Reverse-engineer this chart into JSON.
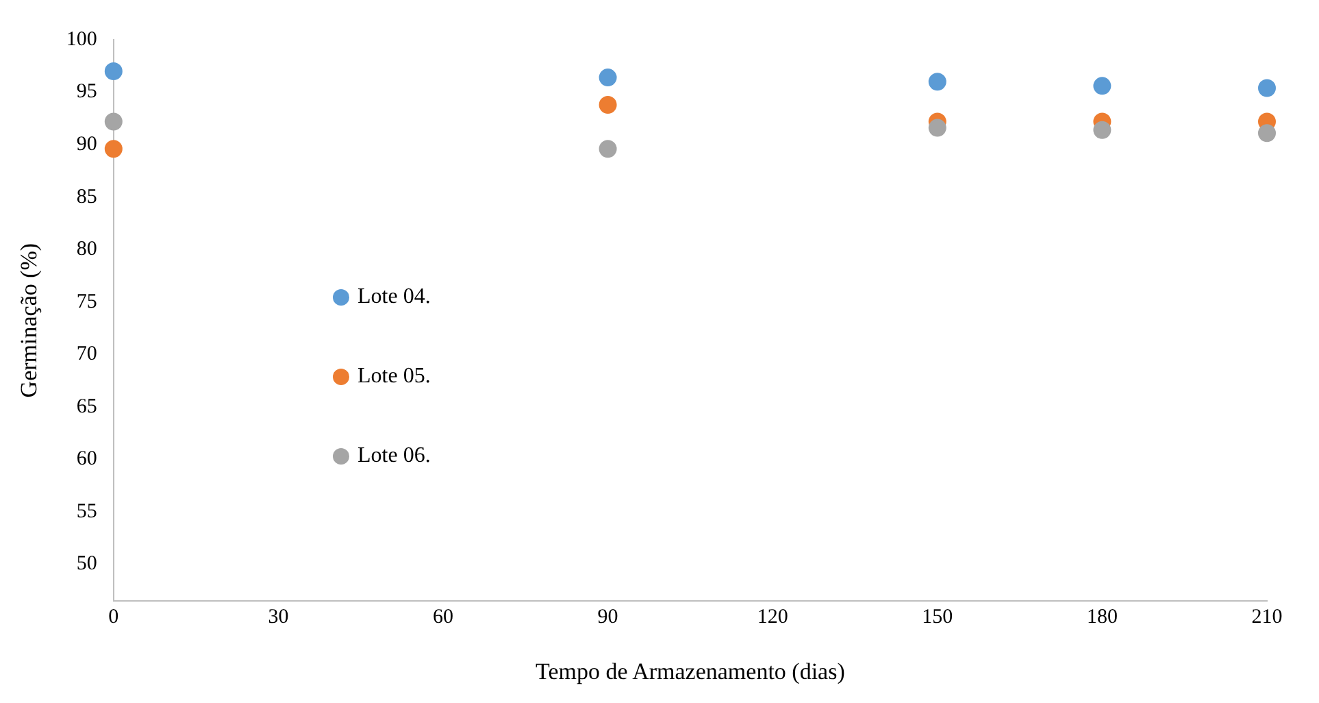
{
  "chart_data": {
    "type": "scatter",
    "xlabel": "Tempo de Armazenamento (dias)",
    "ylabel": "Germinação (%)",
    "x": [
      0,
      90,
      150,
      180,
      210
    ],
    "series": [
      {
        "name": "Lote 04.",
        "color": "#5b9bd5",
        "values": [
          97,
          96.4,
          96,
          95.6,
          95.4
        ]
      },
      {
        "name": "Lote 05.",
        "color": "#ed7d31",
        "values": [
          89.6,
          93.8,
          92.2,
          92.2,
          92.2
        ]
      },
      {
        "name": "Lote 06.",
        "color": "#a5a5a5",
        "values": [
          92.2,
          89.6,
          91.6,
          91.4,
          91.1
        ]
      }
    ],
    "xlim": [
      0,
      210
    ],
    "xticks": [
      0,
      30,
      60,
      90,
      120,
      150,
      180,
      210
    ],
    "ylim": [
      46.5,
      100
    ],
    "yticks": [
      50,
      55,
      60,
      65,
      70,
      75,
      80,
      85,
      90,
      95,
      100
    ],
    "grid": false,
    "legend": "left",
    "marker": "circle"
  }
}
